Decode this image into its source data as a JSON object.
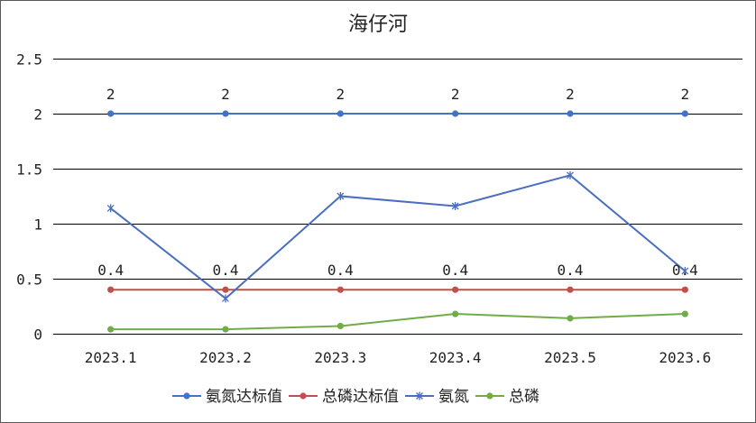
{
  "chart_data": {
    "type": "line",
    "title": "海仔河",
    "categories": [
      "2023.1",
      "2023.2",
      "2023.3",
      "2023.4",
      "2023.5",
      "2023.6"
    ],
    "ylim": [
      0,
      2.5
    ],
    "yticks": [
      0,
      0.5,
      1,
      1.5,
      2,
      2.5
    ],
    "ytick_labels": [
      "0",
      "0.5",
      "1",
      "1.5",
      "2",
      "2.5"
    ],
    "grid": true,
    "legend": "bottom",
    "series": [
      {
        "name": "氨氮达标值",
        "values": [
          2,
          2,
          2,
          2,
          2,
          2
        ],
        "data_labels": [
          "2",
          "2",
          "2",
          "2",
          "2",
          "2"
        ],
        "color": "#4472c4",
        "marker": "circle"
      },
      {
        "name": "总磷达标值",
        "values": [
          0.4,
          0.4,
          0.4,
          0.4,
          0.4,
          0.4
        ],
        "data_labels": [
          "0.4",
          "0.4",
          "0.4",
          "0.4",
          "0.4",
          "0.4"
        ],
        "color": "#c0504d",
        "marker": "circle"
      },
      {
        "name": "氨氮",
        "values": [
          1.14,
          0.32,
          1.25,
          1.16,
          1.44,
          0.57
        ],
        "color": "#4a6fbf",
        "marker": "star"
      },
      {
        "name": "总磷",
        "values": [
          0.04,
          0.04,
          0.07,
          0.18,
          0.14,
          0.18
        ],
        "color": "#70ad47",
        "marker": "circle"
      }
    ]
  }
}
